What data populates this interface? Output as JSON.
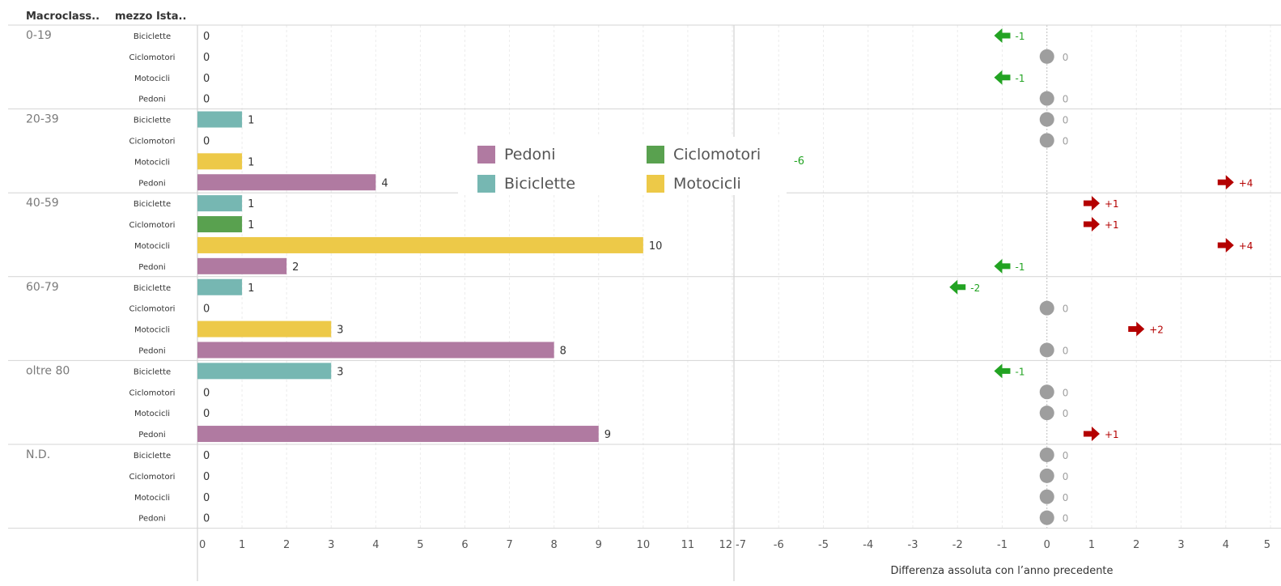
{
  "header": {
    "col1": "Macroclass..",
    "col2": "mezzo Ista.."
  },
  "colors": {
    "Pedoni": "#b07aa1",
    "Biciclette": "#76b7b2",
    "Ciclomotori": "#59a14f",
    "Motocicli": "#edc948",
    "up": "#b40000",
    "down": "#22a322",
    "neutral": "#9e9e9e"
  },
  "legend": [
    {
      "label": "Pedoni",
      "color": "#b07aa1"
    },
    {
      "label": "Ciclomotori",
      "color": "#59a14f"
    },
    {
      "label": "Biciclette",
      "color": "#76b7b2"
    },
    {
      "label": "Motocicli",
      "color": "#edc948"
    }
  ],
  "stray_label": "-6",
  "chart_data": [
    {
      "type": "bar",
      "orientation": "horizontal",
      "xlim": [
        0,
        12
      ],
      "x_ticks": [
        "0",
        "1",
        "2",
        "3",
        "4",
        "5",
        "6",
        "7",
        "8",
        "9",
        "10",
        "11",
        "12"
      ],
      "grid": true,
      "groups": [
        {
          "group": "0-19",
          "rows": [
            {
              "mezzo": "Biciclette",
              "value": 0
            },
            {
              "mezzo": "Ciclomotori",
              "value": 0
            },
            {
              "mezzo": "Motocicli",
              "value": 0
            },
            {
              "mezzo": "Pedoni",
              "value": 0
            }
          ]
        },
        {
          "group": "20-39",
          "rows": [
            {
              "mezzo": "Biciclette",
              "value": 1
            },
            {
              "mezzo": "Ciclomotori",
              "value": 0
            },
            {
              "mezzo": "Motocicli",
              "value": 1
            },
            {
              "mezzo": "Pedoni",
              "value": 4
            }
          ]
        },
        {
          "group": "40-59",
          "rows": [
            {
              "mezzo": "Biciclette",
              "value": 1
            },
            {
              "mezzo": "Ciclomotori",
              "value": 1
            },
            {
              "mezzo": "Motocicli",
              "value": 10
            },
            {
              "mezzo": "Pedoni",
              "value": 2
            }
          ]
        },
        {
          "group": "60-79",
          "rows": [
            {
              "mezzo": "Biciclette",
              "value": 1
            },
            {
              "mezzo": "Ciclomotori",
              "value": 0
            },
            {
              "mezzo": "Motocicli",
              "value": 3
            },
            {
              "mezzo": "Pedoni",
              "value": 8
            }
          ]
        },
        {
          "group": "oltre 80",
          "rows": [
            {
              "mezzo": "Biciclette",
              "value": 3
            },
            {
              "mezzo": "Ciclomotori",
              "value": 0
            },
            {
              "mezzo": "Motocicli",
              "value": 0
            },
            {
              "mezzo": "Pedoni",
              "value": 9
            }
          ]
        },
        {
          "group": "N.D.",
          "rows": [
            {
              "mezzo": "Biciclette",
              "value": 0
            },
            {
              "mezzo": "Ciclomotori",
              "value": 0
            },
            {
              "mezzo": "Motocicli",
              "value": 0
            },
            {
              "mezzo": "Pedoni",
              "value": 0
            }
          ]
        }
      ]
    },
    {
      "type": "scatter",
      "xlabel": "Differenza assoluta con l’anno precedente",
      "xlim": [
        -7,
        5
      ],
      "x_ticks": [
        "-7",
        "-6",
        "-5",
        "-4",
        "-3",
        "-2",
        "-1",
        "0",
        "1",
        "2",
        "3",
        "4",
        "5"
      ],
      "grid": true,
      "values": [
        -1,
        0,
        -1,
        0,
        0,
        0,
        null,
        4,
        1,
        1,
        4,
        -1,
        -2,
        0,
        2,
        0,
        -1,
        0,
        0,
        1,
        0,
        0,
        0,
        0
      ],
      "labels": [
        "-1",
        "0",
        "-1",
        "0",
        "0",
        "0",
        "",
        "+4",
        "+1",
        "+1",
        "+4",
        "-1",
        "-2",
        "0",
        "+2",
        "0",
        "-1",
        "0",
        "0",
        "+1",
        "0",
        "0",
        "0",
        "0"
      ]
    }
  ]
}
